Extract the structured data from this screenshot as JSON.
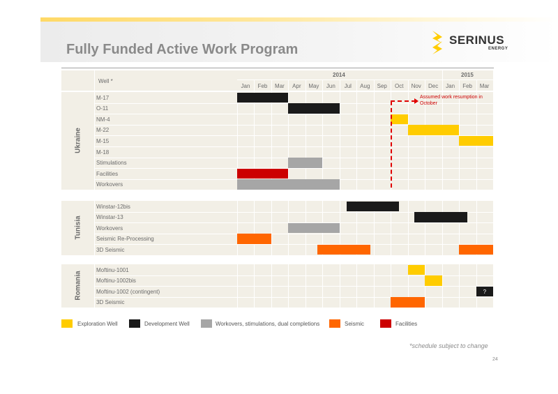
{
  "title": "Fully Funded Active Work Program",
  "logo": {
    "name": "SERINUS",
    "sub": "ENERGY"
  },
  "header": {
    "well_label": "Well *",
    "years": [
      "2014",
      "2015"
    ],
    "months": [
      "Jan",
      "Feb",
      "Mar",
      "Apr",
      "May",
      "Jun",
      "Jul",
      "Aug",
      "Sep",
      "Oct",
      "Nov",
      "Dec",
      "Jan",
      "Feb",
      "Mar"
    ]
  },
  "sections": [
    {
      "country": "Ukraine",
      "rows": [
        {
          "label": "M-17",
          "bars": [
            {
              "start": 0,
              "end": 3,
              "type": "development"
            }
          ]
        },
        {
          "label": "O-11",
          "bars": [
            {
              "start": 3,
              "end": 6,
              "type": "development"
            }
          ]
        },
        {
          "label": "NM-4",
          "bars": [
            {
              "start": 9,
              "end": 10,
              "type": "exploration"
            }
          ]
        },
        {
          "label": "M-22",
          "bars": [
            {
              "start": 10,
              "end": 13,
              "type": "exploration"
            }
          ]
        },
        {
          "label": "M-15",
          "bars": [
            {
              "start": 13,
              "end": 15,
              "type": "exploration"
            }
          ]
        },
        {
          "label": "M-18",
          "bars": []
        },
        {
          "label": "Stimulations",
          "bars": [
            {
              "start": 3,
              "end": 5,
              "type": "workover"
            }
          ]
        },
        {
          "label": "Facilities",
          "bars": [
            {
              "start": 0,
              "end": 3,
              "type": "facilities"
            }
          ]
        },
        {
          "label": "Workovers",
          "bars": [
            {
              "start": 0,
              "end": 6,
              "type": "workover"
            }
          ]
        }
      ]
    },
    {
      "country": "Tunisia",
      "rows": [
        {
          "label": "Winstar-12bis",
          "bars": [
            {
              "start": 6.4,
              "end": 9.5,
              "type": "development"
            }
          ]
        },
        {
          "label": "Winstar-13",
          "bars": [
            {
              "start": 10.4,
              "end": 13.5,
              "type": "development"
            }
          ]
        },
        {
          "label": "Workovers",
          "bars": [
            {
              "start": 3,
              "end": 6,
              "type": "workover"
            }
          ]
        },
        {
          "label": "Seismic Re-Processing",
          "bars": [
            {
              "start": 0,
              "end": 2,
              "type": "seismic"
            }
          ]
        },
        {
          "label": "3D Seismic",
          "bars": [
            {
              "start": 4.7,
              "end": 7.8,
              "type": "seismic"
            },
            {
              "start": 13,
              "end": 15,
              "type": "seismic"
            }
          ]
        }
      ]
    },
    {
      "country": "Romania",
      "rows": [
        {
          "label": "Moftinu-1001",
          "bars": [
            {
              "start": 10,
              "end": 11,
              "type": "exploration"
            }
          ]
        },
        {
          "label": "Moftinu-1002bis",
          "bars": [
            {
              "start": 11,
              "end": 12,
              "type": "exploration"
            }
          ]
        },
        {
          "label": "Moftinu-1002 (contingent)",
          "bars": [
            {
              "start": 14,
              "end": 15,
              "type": "development",
              "text": "?"
            }
          ]
        },
        {
          "label": "3D Seismic",
          "bars": [
            {
              "start": 9,
              "end": 11,
              "type": "seismic"
            }
          ]
        }
      ]
    }
  ],
  "annotation": "Assumed work resumption in October",
  "legend": [
    {
      "type": "exploration",
      "label": "Exploration Well",
      "color": "#ffcc00"
    },
    {
      "type": "development",
      "label": "Development Well",
      "color": "#1a1a1a"
    },
    {
      "type": "workover",
      "label": "Workovers, stimulations, dual completions",
      "color": "#a6a6a6"
    },
    {
      "type": "seismic",
      "label": "Seismic",
      "color": "#ff6600"
    },
    {
      "type": "facilities",
      "label": "Facilities",
      "color": "#cc0000"
    }
  ],
  "footnote": "*schedule subject to change",
  "page_number": "24"
}
